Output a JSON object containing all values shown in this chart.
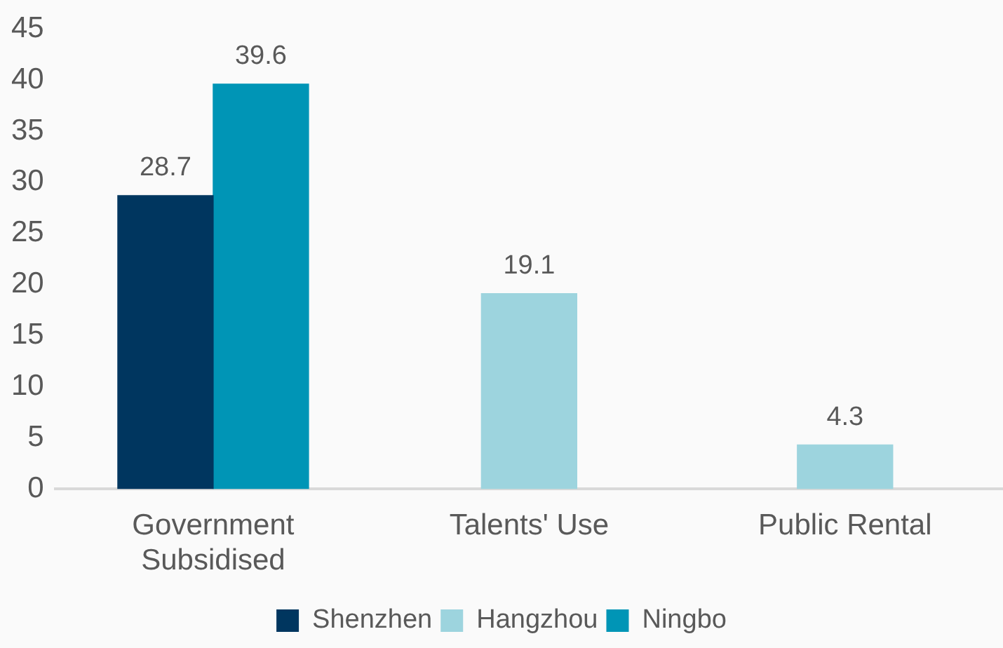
{
  "chart_data": {
    "type": "bar",
    "categories": [
      "Government Subsidised",
      "Talents' Use",
      "Public Rental"
    ],
    "series": [
      {
        "name": "Shenzhen",
        "color": "#00365f",
        "values": [
          28.7,
          null,
          null
        ]
      },
      {
        "name": "Hangzhou",
        "color": "#9dd4de",
        "values": [
          null,
          19.1,
          4.3
        ]
      },
      {
        "name": "Ningbo",
        "color": "#0095b6",
        "values": [
          39.6,
          null,
          null
        ]
      }
    ],
    "ylim": [
      0,
      45
    ],
    "yticks": [
      0,
      5,
      10,
      15,
      20,
      25,
      30,
      35,
      40,
      45
    ],
    "grid": false,
    "legend": "bottom",
    "data_labels": true
  }
}
